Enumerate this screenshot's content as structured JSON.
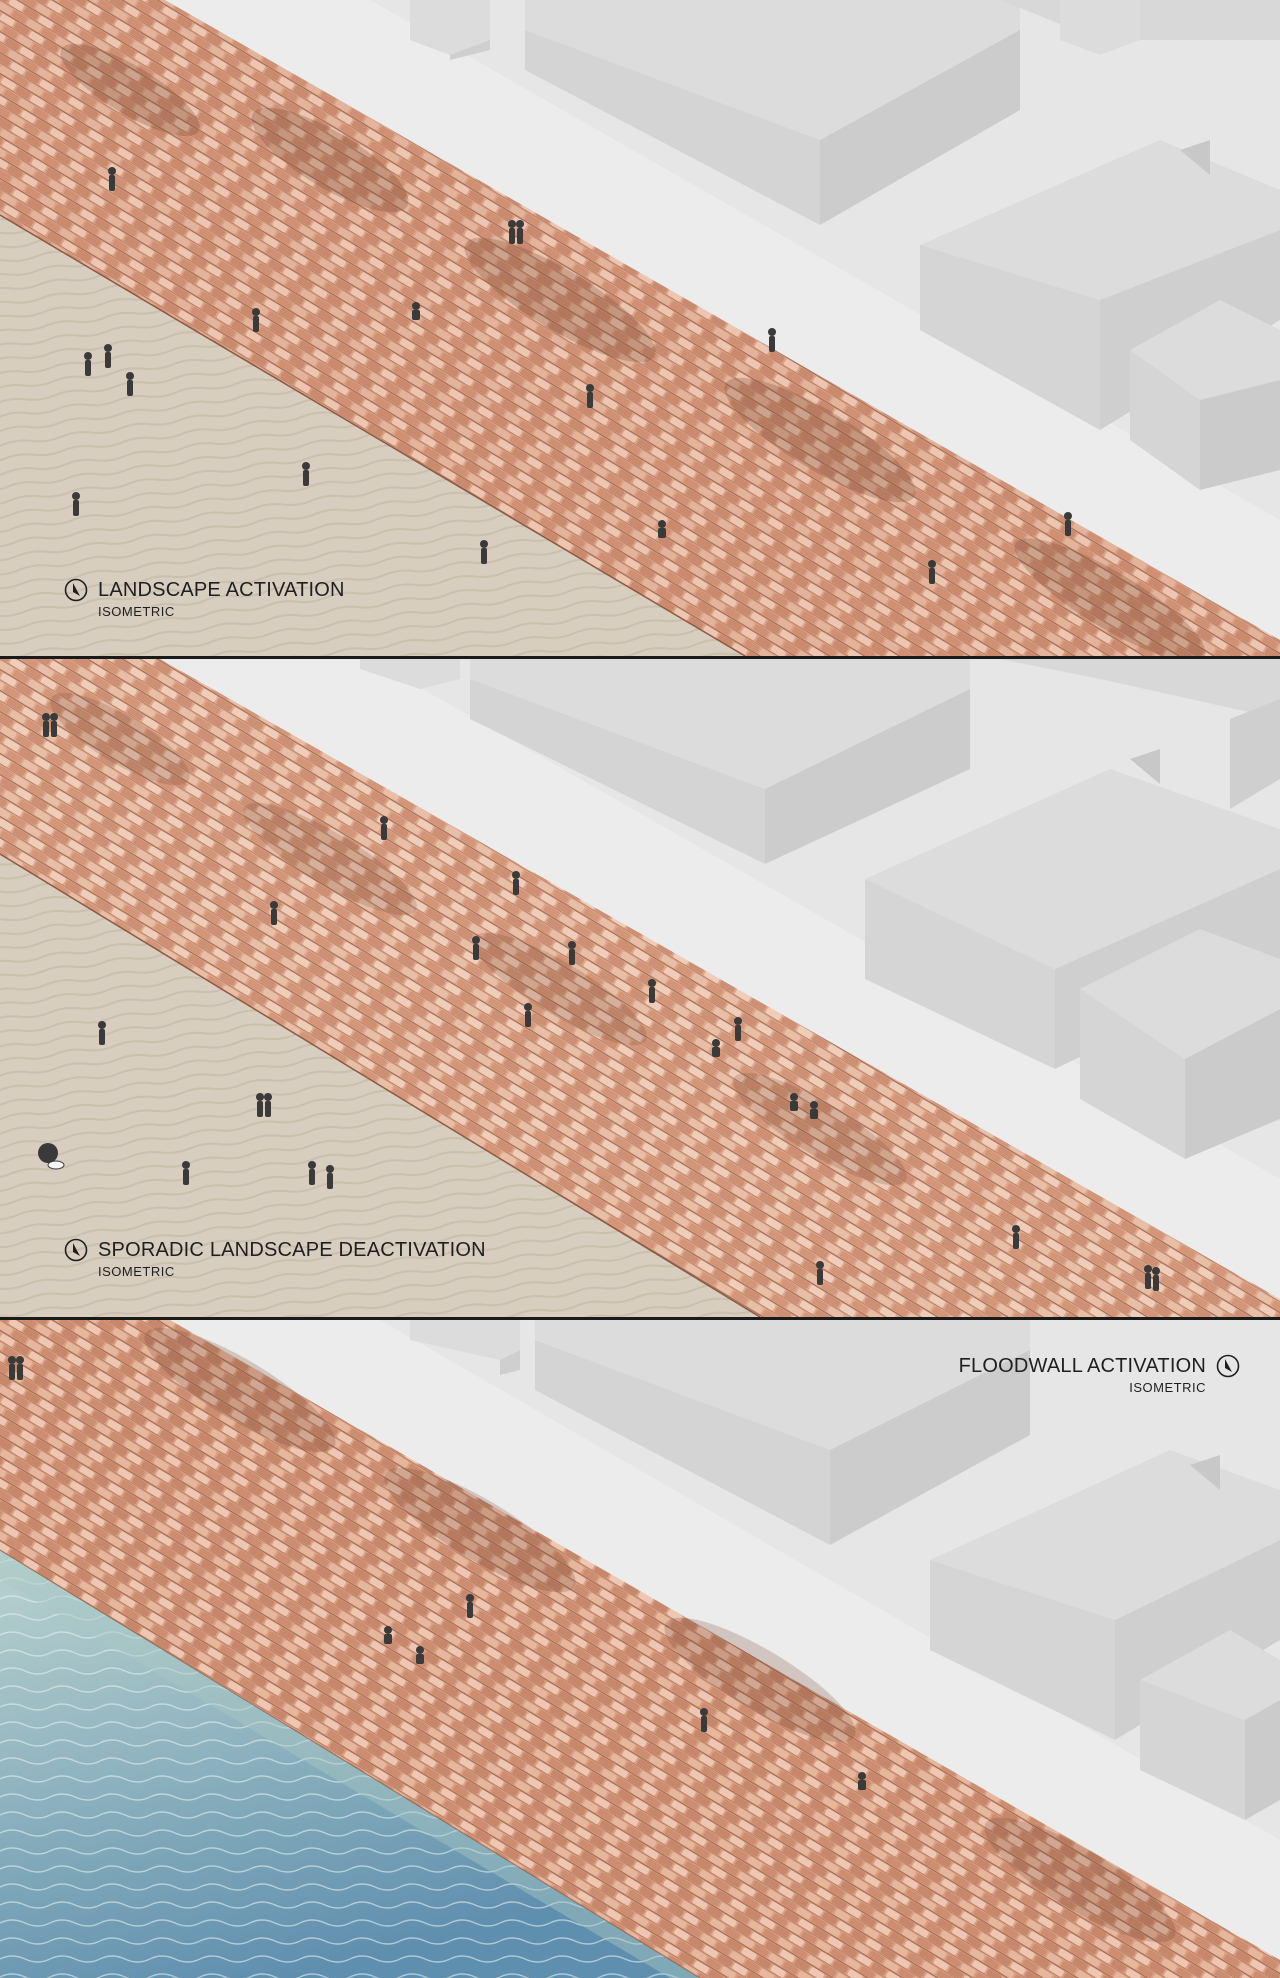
{
  "sheet": {
    "panels": [
      {
        "title": "LANDSCAPE ACTIVATION",
        "subtitle": "ISOMETRIC",
        "ground": "sand"
      },
      {
        "title": "SPORADIC LANDSCAPE DEACTIVATION",
        "subtitle": "ISOMETRIC",
        "ground": "sand"
      },
      {
        "title": "FLOODWALL ACTIVATION",
        "subtitle": "ISOMETRIC",
        "ground": "water"
      }
    ],
    "icons": {
      "north_arrow": "north-arrow-icon"
    },
    "colors": {
      "building_top": "#dcdcdc",
      "building_side": "#cfcfcf",
      "street": "#e7e7e7",
      "tile": "#d9a185",
      "tile_dark": "#b9785c",
      "sand": "#d8cebf",
      "water_light": "#b9d3cf",
      "water_deep": "#5f8fae",
      "divider": "#1a1a1a"
    }
  }
}
